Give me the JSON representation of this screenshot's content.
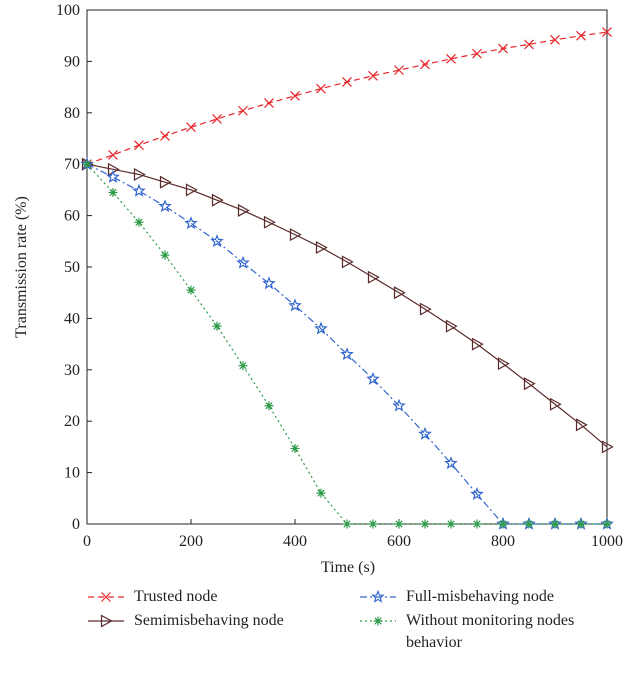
{
  "chart_data": {
    "type": "line",
    "x_label": "Time (s)",
    "y_label": "Transmission rate (%)",
    "x": [
      0,
      50,
      100,
      150,
      200,
      250,
      300,
      350,
      400,
      450,
      500,
      550,
      600,
      650,
      700,
      750,
      800,
      850,
      900,
      950,
      1000
    ],
    "xlim": [
      0,
      1000
    ],
    "xticks": [
      0,
      200,
      400,
      600,
      800,
      1000
    ],
    "ylim": [
      0,
      100
    ],
    "yticks": [
      0,
      10,
      20,
      30,
      40,
      50,
      60,
      70,
      80,
      90,
      100
    ],
    "grid": false,
    "series": [
      {
        "name": "Trusted node",
        "color": "#e8252a",
        "dash": "dashed",
        "marker": "x",
        "values": [
          70,
          71.8,
          73.7,
          75.5,
          77.2,
          78.8,
          80.4,
          81.9,
          83.3,
          84.7,
          86.0,
          87.2,
          88.3,
          89.4,
          90.5,
          91.5,
          92.5,
          93.3,
          94.2,
          95.0,
          95.7
        ]
      },
      {
        "name": "Semimisbehaving node",
        "color": "#5a2a2a",
        "dash": "solid",
        "marker": "triangle-right",
        "values": [
          70,
          69,
          68,
          66.5,
          65,
          63,
          61,
          58.7,
          56.3,
          53.8,
          51,
          48,
          45,
          41.8,
          38.5,
          35,
          31.2,
          27.3,
          23.3,
          19.3,
          15
        ]
      },
      {
        "name": "Full-misbehaving node",
        "color": "#3366cc",
        "dash": "dashdot",
        "marker": "star",
        "values": [
          70,
          67.5,
          64.8,
          61.8,
          58.5,
          55,
          50.8,
          46.8,
          42.5,
          38,
          33,
          28.2,
          23,
          17.5,
          11.8,
          5.8,
          0,
          0,
          0,
          0,
          0
        ]
      },
      {
        "name": "Without monitoring nodes behavior",
        "color": "#2e9a48",
        "dash": "dotted",
        "marker": "asterisk",
        "values": [
          70,
          64.5,
          58.7,
          52.3,
          45.5,
          38.5,
          30.8,
          23,
          14.7,
          6,
          0,
          0,
          0,
          0,
          0,
          0,
          0,
          0,
          0,
          0,
          0
        ]
      }
    ]
  }
}
